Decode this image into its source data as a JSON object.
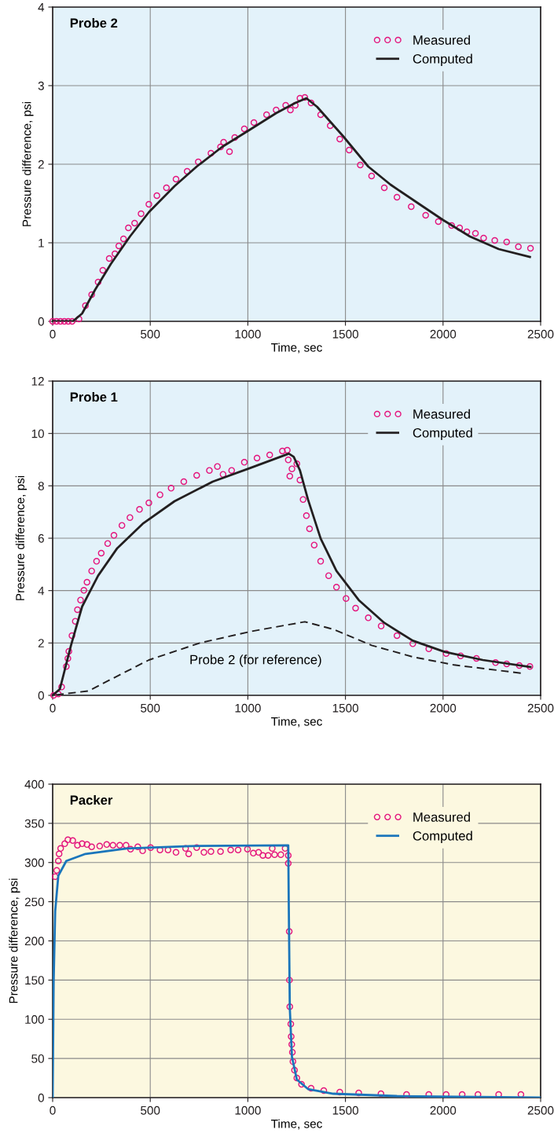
{
  "chart_data": [
    {
      "type": "line",
      "title": "Probe 2",
      "xlabel": "Time, sec",
      "ylabel": "Pressure difference, psi",
      "xlim": [
        0,
        2500
      ],
      "xticks": [
        0,
        500,
        1000,
        1500,
        2000,
        2500
      ],
      "ylim": [
        0,
        4
      ],
      "yticks": [
        0,
        1,
        2,
        3,
        4
      ],
      "grid": true,
      "legend": "top right",
      "series": [
        {
          "name": "Measured",
          "type": "scatter",
          "marker": "circle",
          "color": "#e4157d",
          "x": [
            0,
            20,
            40,
            60,
            80,
            100,
            135,
            168,
            200,
            233,
            257,
            290,
            319,
            339,
            363,
            388,
            420,
            453,
            493,
            534,
            583,
            632,
            689,
            746,
            811,
            860,
            876,
            906,
            933,
            982,
            1031,
            1096,
            1145,
            1194,
            1218,
            1243,
            1267,
            1292,
            1324,
            1373,
            1422,
            1471,
            1519,
            1576,
            1634,
            1699,
            1764,
            1837,
            1911,
            1976,
            2044,
            2085,
            2122,
            2166,
            2208,
            2265,
            2326,
            2386,
            2448
          ],
          "values": [
            0,
            0,
            0,
            0,
            0,
            0,
            0.03,
            0.2,
            0.34,
            0.5,
            0.65,
            0.8,
            0.86,
            0.96,
            1.05,
            1.19,
            1.25,
            1.37,
            1.49,
            1.6,
            1.7,
            1.81,
            1.91,
            2.03,
            2.14,
            2.22,
            2.28,
            2.16,
            2.34,
            2.45,
            2.53,
            2.63,
            2.69,
            2.75,
            2.69,
            2.75,
            2.84,
            2.85,
            2.78,
            2.63,
            2.49,
            2.32,
            2.18,
            1.99,
            1.85,
            1.7,
            1.58,
            1.46,
            1.35,
            1.27,
            1.22,
            1.19,
            1.14,
            1.12,
            1.06,
            1.03,
            1.01,
            0.95,
            0.93
          ]
        },
        {
          "name": "Computed",
          "color": "#231f20",
          "x": [
            0,
            103,
            151,
            217,
            298,
            396,
            493,
            624,
            738,
            868,
            998,
            1145,
            1243,
            1300,
            1355,
            1487,
            1617,
            1731,
            1862,
            2000,
            2138,
            2285,
            2445
          ],
          "values": [
            0,
            0,
            0.1,
            0.4,
            0.73,
            1.08,
            1.39,
            1.72,
            1.97,
            2.22,
            2.42,
            2.65,
            2.78,
            2.84,
            2.73,
            2.36,
            1.97,
            1.74,
            1.52,
            1.29,
            1.08,
            0.92,
            0.82
          ]
        }
      ]
    },
    {
      "type": "line",
      "title": "Probe 1",
      "xlabel": "Time, sec",
      "ylabel": "Pressure difference, psi",
      "xlim": [
        0,
        2500
      ],
      "xticks": [
        0,
        500,
        1000,
        1500,
        2000,
        2500
      ],
      "ylim": [
        0,
        12
      ],
      "yticks": [
        0,
        2,
        4,
        6,
        8,
        10,
        12
      ],
      "grid": true,
      "legend": "top right",
      "annotations": [
        "Probe 2 (for reference)"
      ],
      "series": [
        {
          "name": "Measured",
          "type": "scatter",
          "marker": "circle",
          "color": "#e4157d",
          "x": [
            5,
            29,
            46,
            70,
            78,
            83,
            99,
            116,
            127,
            143,
            160,
            176,
            200,
            225,
            249,
            282,
            314,
            355,
            396,
            445,
            493,
            550,
            607,
            672,
            738,
            803,
            844,
            873,
            917,
            982,
            1047,
            1112,
            1177,
            1202,
            1207,
            1215,
            1226,
            1251,
            1267,
            1283,
            1300,
            1316,
            1340,
            1373,
            1414,
            1454,
            1503,
            1552,
            1617,
            1683,
            1764,
            1845,
            1927,
            2016,
            2090,
            2171,
            2269,
            2326,
            2391,
            2445
          ],
          "values": [
            0,
            0.05,
            0.32,
            1.1,
            1.41,
            1.68,
            2.28,
            2.83,
            3.27,
            3.64,
            4.01,
            4.32,
            4.75,
            5.12,
            5.43,
            5.8,
            6.11,
            6.49,
            6.79,
            7.1,
            7.35,
            7.66,
            7.91,
            8.16,
            8.4,
            8.59,
            8.74,
            8.44,
            8.59,
            8.9,
            9.06,
            9.18,
            9.33,
            9.36,
            8.99,
            8.37,
            8.65,
            8.84,
            8.22,
            7.48,
            6.86,
            6.36,
            5.74,
            5.12,
            4.57,
            4.13,
            3.7,
            3.33,
            2.96,
            2.65,
            2.28,
            1.97,
            1.78,
            1.6,
            1.51,
            1.41,
            1.25,
            1.2,
            1.14,
            1.1
          ]
        },
        {
          "name": "Computed",
          "color": "#231f20",
          "x": [
            0,
            37,
            94,
            151,
            233,
            331,
            461,
            624,
            820,
            1015,
            1210,
            1235,
            1267,
            1308,
            1373,
            1454,
            1568,
            1699,
            1845,
            2008,
            2204,
            2448
          ],
          "values": [
            0,
            0.24,
            1.91,
            3.39,
            4.57,
            5.62,
            6.55,
            7.41,
            8.16,
            8.69,
            9.23,
            9.11,
            8.59,
            7.48,
            5.99,
            4.75,
            3.64,
            2.77,
            2.09,
            1.66,
            1.35,
            1.08
          ]
        },
        {
          "line_style": "dashed",
          "color": "#231f20",
          "x": [
            0,
            184,
            298,
            493,
            754,
            1015,
            1292,
            1438,
            1634,
            1845,
            2057,
            2398
          ],
          "values": [
            0,
            0.17,
            0.61,
            1.35,
            2.0,
            2.44,
            2.81,
            2.52,
            1.91,
            1.47,
            1.16,
            0.85
          ]
        }
      ]
    },
    {
      "type": "line",
      "title": "Packer",
      "xlabel": "Time, sec",
      "ylabel": "Pressure difference, psi",
      "xlim": [
        0,
        2500
      ],
      "xticks": [
        0,
        500,
        1000,
        1500,
        2000,
        2500
      ],
      "ylim": [
        0,
        400
      ],
      "yticks": [
        0,
        50,
        100,
        150,
        200,
        250,
        300,
        350,
        400
      ],
      "grid": true,
      "legend": "top right",
      "series": [
        {
          "name": "Measured",
          "type": "scatter",
          "marker": "circle",
          "color": "#e4157d",
          "x": [
            13,
            21,
            29,
            33,
            41,
            62,
            78,
            103,
            127,
            151,
            176,
            200,
            241,
            277,
            309,
            344,
            376,
            399,
            436,
            461,
            502,
            550,
            591,
            632,
            681,
            697,
            738,
            775,
            811,
            860,
            912,
            950,
            998,
            1028,
            1055,
            1077,
            1104,
            1125,
            1137,
            1169,
            1191,
            1207,
            1207,
            1212,
            1213,
            1215,
            1220,
            1222,
            1225,
            1228,
            1231,
            1239,
            1251,
            1275,
            1324,
            1389,
            1471,
            1568,
            1682,
            1813,
            1927,
            2016,
            2098,
            2179,
            2285,
            2399
          ],
          "values": [
            282,
            290,
            302,
            311,
            318,
            324,
            329,
            328,
            322,
            324,
            323,
            320,
            321,
            323,
            322,
            322,
            322,
            317,
            320,
            315,
            319,
            316,
            316,
            313,
            318,
            311,
            319,
            313,
            314,
            314,
            316,
            316,
            317,
            312,
            313,
            309,
            309,
            318,
            310,
            310,
            318,
            309,
            299,
            212,
            150,
            116,
            94,
            78,
            68,
            58,
            46,
            35,
            25,
            17,
            12,
            9,
            7,
            6,
            5,
            4,
            4,
            4,
            4,
            4,
            4,
            4
          ]
        },
        {
          "name": "Computed",
          "color": "#1a75bb",
          "x": [
            0,
            5,
            13,
            29,
            70,
            168,
            380,
            705,
            1207,
            1210,
            1215,
            1226,
            1251,
            1308,
            1438,
            1764,
            2497
          ],
          "values": [
            0,
            147,
            238,
            283,
            302,
            311,
            318,
            321,
            322,
            238,
            114,
            52,
            23,
            11,
            5,
            2,
            0
          ]
        }
      ]
    }
  ]
}
